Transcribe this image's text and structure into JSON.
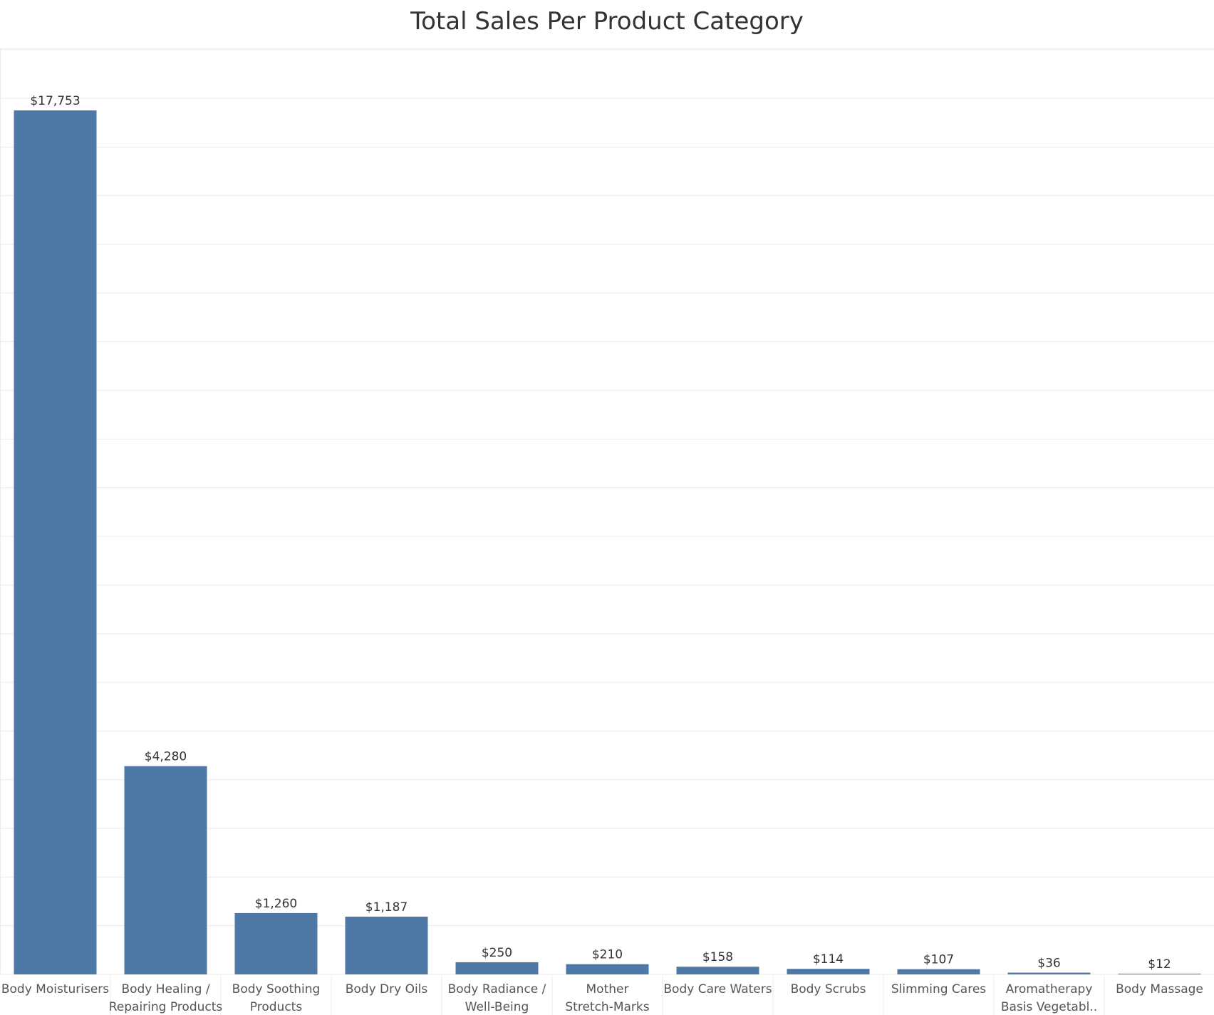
{
  "chart_data": {
    "type": "bar",
    "title": "Total Sales Per Product Category",
    "xlabel": "",
    "ylabel": "",
    "ylim": [
      0,
      19000
    ],
    "grid": true,
    "categories": [
      "Body Moisturisers",
      "Body Healing / Repairing Products",
      "Body Soothing Products",
      "Body Dry Oils",
      "Body Radiance / Well-Being",
      "Mother Stretch-Marks",
      "Body Care Waters",
      "Body Scrubs",
      "Slimming Cares",
      "Aromatherapy Basis Vegetabl..",
      "Body Massage"
    ],
    "category_label_lines": [
      [
        "Body Moisturisers"
      ],
      [
        "Body Healing /",
        "Repairing Products"
      ],
      [
        "Body Soothing",
        "Products"
      ],
      [
        "Body Dry Oils"
      ],
      [
        "Body Radiance /",
        "Well-Being"
      ],
      [
        "Mother",
        "Stretch-Marks"
      ],
      [
        "Body Care Waters"
      ],
      [
        "Body Scrubs"
      ],
      [
        "Slimming Cares"
      ],
      [
        "Aromatherapy",
        "Basis Vegetabl.."
      ],
      [
        "Body Massage"
      ]
    ],
    "values": [
      17753,
      4280,
      1260,
      1187,
      250,
      210,
      158,
      114,
      107,
      36,
      12
    ],
    "value_labels": [
      "$17,753",
      "$4,280",
      "$1,260",
      "$1,187",
      "$250",
      "$210",
      "$158",
      "$114",
      "$107",
      "$36",
      "$12"
    ],
    "colors": {
      "bar": "#4e79a7",
      "grid": "#ebebeb",
      "text": "#333333",
      "axis_text": "#555555"
    }
  }
}
